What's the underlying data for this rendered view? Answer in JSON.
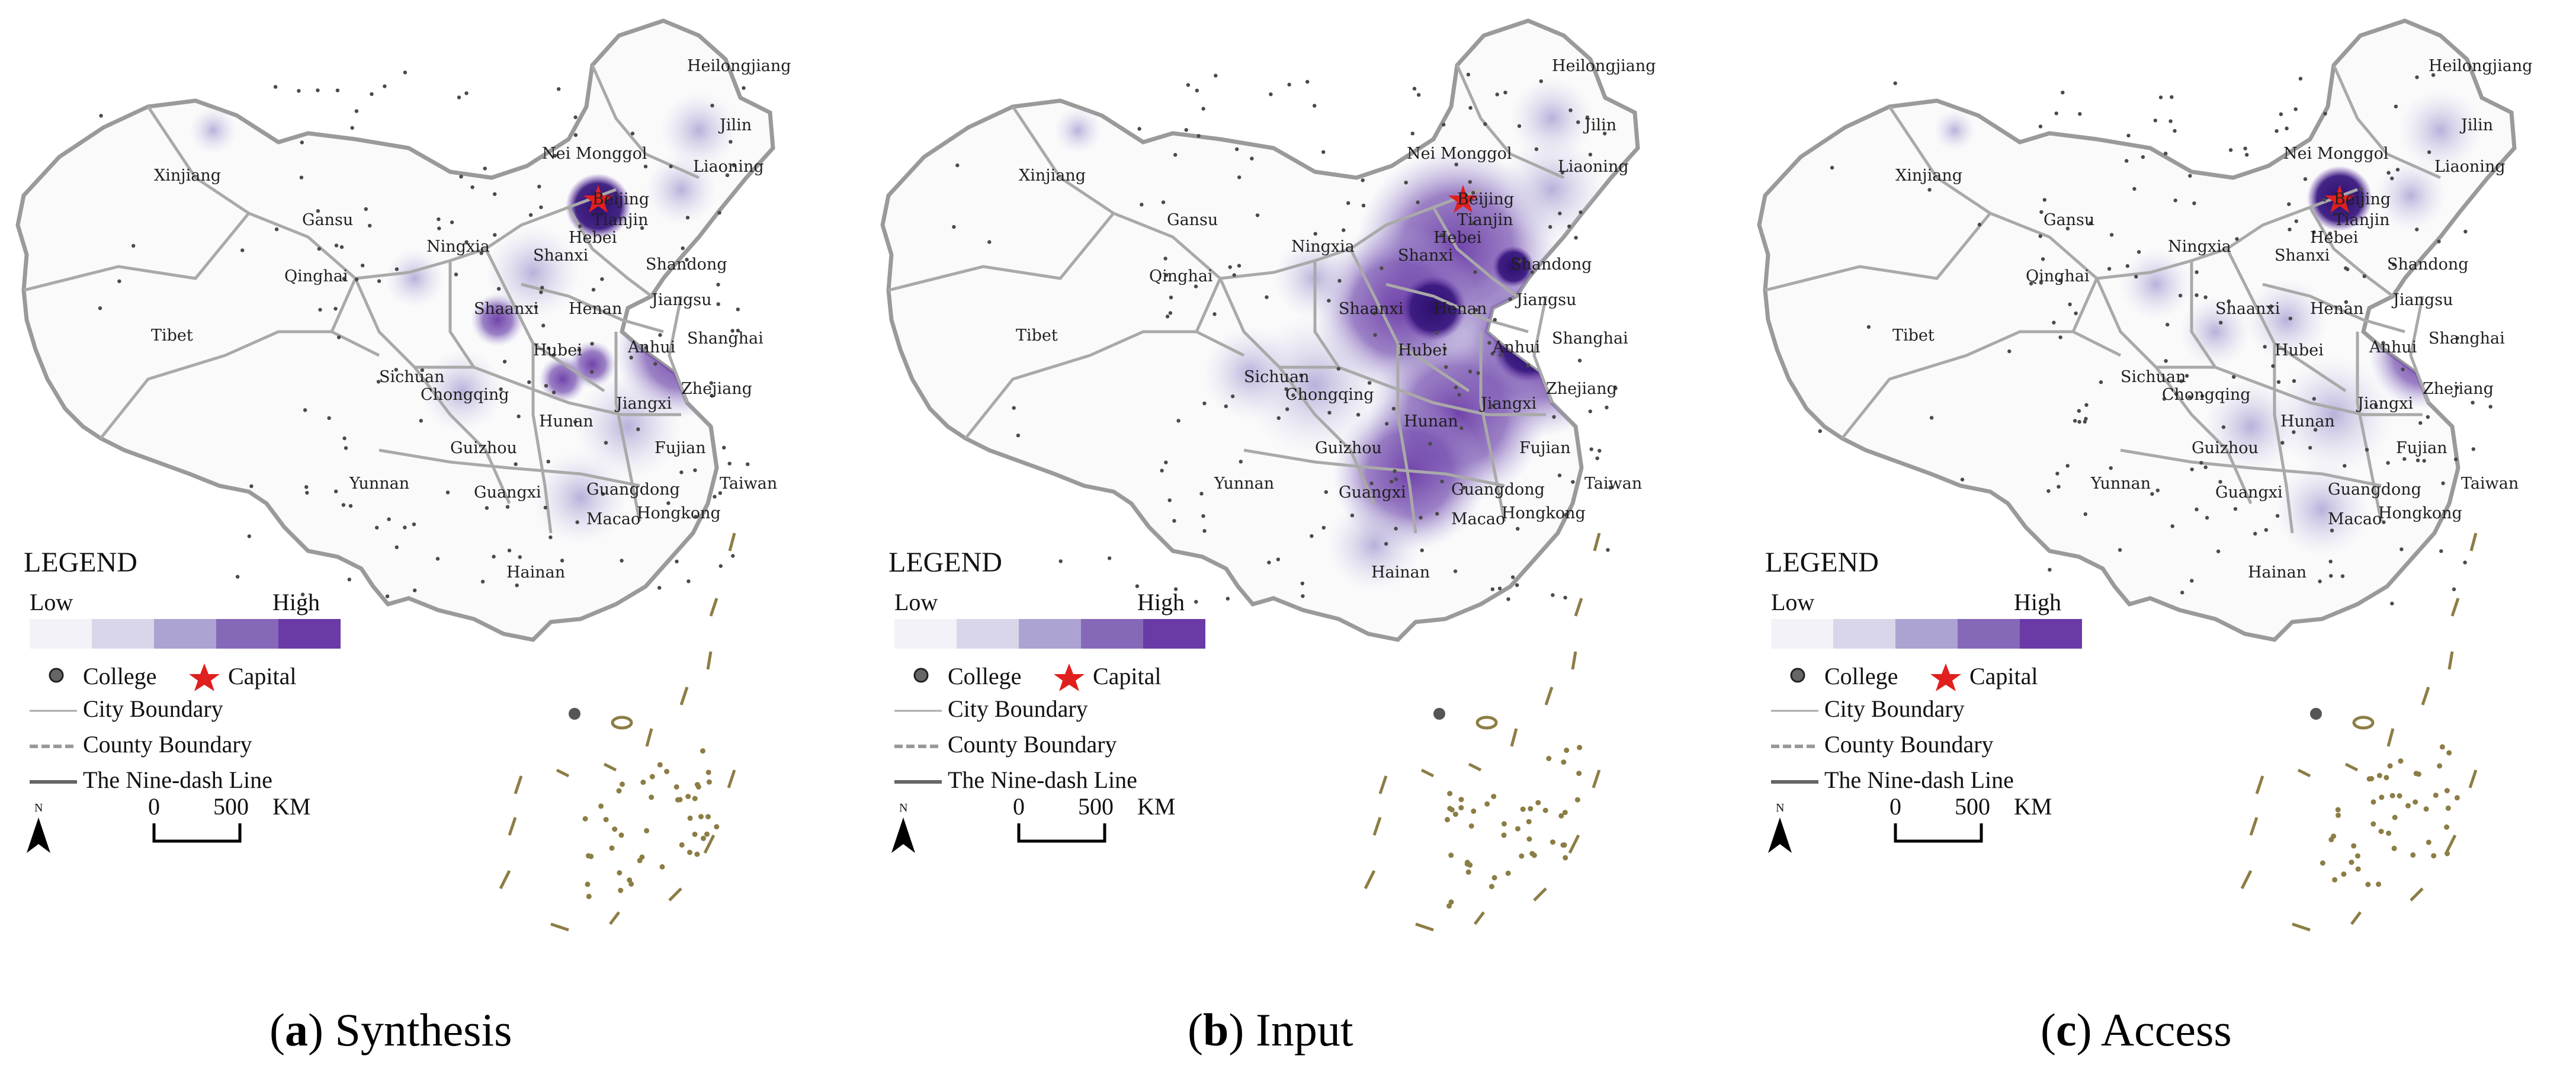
{
  "panels": [
    {
      "id": "a",
      "caption_letter": "a",
      "caption_text": "Synthesis",
      "scheme": "synthesis"
    },
    {
      "id": "b",
      "caption_letter": "b",
      "caption_text": "Input",
      "scheme": "input"
    },
    {
      "id": "c",
      "caption_letter": "c",
      "caption_text": "Access",
      "scheme": "access"
    }
  ],
  "legend": {
    "title": "LEGEND",
    "low": "Low",
    "high": "High",
    "college": "College",
    "capital": "Capital",
    "city_boundary": "City Boundary",
    "county_boundary": "County Boundary",
    "nine_dash": "The Nine-dash Line",
    "scale_zero": "0",
    "scale_500": "500",
    "scale_unit": "KM",
    "north": "N",
    "ramp_colors": [
      "#f3f2f8",
      "#d9d6ea",
      "#aca3d3",
      "#8569b8",
      "#6a3aa6"
    ]
  },
  "province_labels": {
    "heilongjiang": "Heilongjiang",
    "jilin": "Jilin",
    "neimonggol": "Nei Monggol",
    "liaoning": "Liaoning",
    "xinjiang": "Xinjiang",
    "beijing": "Beijing",
    "tianjin": "Tianjin",
    "hebei": "Hebei",
    "gansu": "Gansu",
    "ningxia": "Ningxia",
    "shanxi": "Shanxi",
    "shandong": "Shandong",
    "qinghai": "Qinghai",
    "shaanxi": "Shaanxi",
    "henan": "Henan",
    "jiangsu": "Jiangsu",
    "tibet": "Tibet",
    "anhui": "Anhui",
    "shanghai": "Shanghai",
    "hubei": "Hubei",
    "sichuan": "Sichuan",
    "chongqing": "Chongqing",
    "zhejiang": "Zhejiang",
    "jiangxi": "Jiangxi",
    "hunan": "Hunan",
    "guizhou": "Guizhou",
    "fujian": "Fujian",
    "yunnan": "Yunnan",
    "guangxi": "Guangxi",
    "guangdong": "Guangdong",
    "taiwan": "Taiwan",
    "hongkong": "Hongkong",
    "macao": "Macao",
    "hainan": "Hainan"
  },
  "colors": {
    "boundary": "#a9a9a9",
    "map_fill": "#fafafb",
    "islands": "#8c7d45",
    "capital_star": "#e0201e",
    "hotspot_high": "#5b2e9c",
    "hotspot_top": "#2e0f6e"
  }
}
